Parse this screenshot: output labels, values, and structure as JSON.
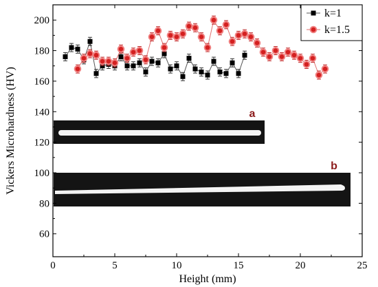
{
  "chart_data": {
    "type": "scatter",
    "xlabel": "Height (mm)",
    "ylabel": "Vickers Microhardness (HV)",
    "xlim": [
      0,
      25
    ],
    "ylim": [
      45,
      210
    ],
    "x_ticks": [
      0,
      5,
      10,
      15,
      20,
      25
    ],
    "y_ticks": [
      60,
      80,
      100,
      120,
      140,
      160,
      180,
      200
    ],
    "grid": false,
    "legend_position": "top-right",
    "series": [
      {
        "name": "k=1",
        "marker": "square",
        "color": "#000000",
        "line_color": "#555555",
        "points": [
          [
            1.0,
            176
          ],
          [
            1.5,
            182
          ],
          [
            2.0,
            181
          ],
          [
            2.5,
            174
          ],
          [
            3.0,
            186
          ],
          [
            3.5,
            165
          ],
          [
            4.0,
            170
          ],
          [
            4.5,
            171
          ],
          [
            5.0,
            170
          ],
          [
            5.5,
            176
          ],
          [
            6.0,
            170
          ],
          [
            6.5,
            170
          ],
          [
            7.0,
            172
          ],
          [
            7.5,
            166
          ],
          [
            8.0,
            173
          ],
          [
            8.5,
            172
          ],
          [
            9.0,
            178
          ],
          [
            9.5,
            168
          ],
          [
            10.0,
            170
          ],
          [
            10.5,
            163
          ],
          [
            11.0,
            175
          ],
          [
            11.5,
            168
          ],
          [
            12.0,
            166
          ],
          [
            12.5,
            164
          ],
          [
            13.0,
            173
          ],
          [
            13.5,
            166
          ],
          [
            14.0,
            165
          ],
          [
            14.5,
            172
          ],
          [
            15.0,
            165
          ],
          [
            15.5,
            177
          ]
        ]
      },
      {
        "name": "k=1.5",
        "marker": "circle",
        "color": "#d42020",
        "line_color": "#e07070",
        "points": [
          [
            2.0,
            168
          ],
          [
            2.5,
            175
          ],
          [
            3.0,
            178
          ],
          [
            3.5,
            177
          ],
          [
            4.0,
            173
          ],
          [
            4.5,
            173
          ],
          [
            5.0,
            172
          ],
          [
            5.5,
            181
          ],
          [
            6.0,
            175
          ],
          [
            6.5,
            179
          ],
          [
            7.0,
            180
          ],
          [
            7.5,
            174
          ],
          [
            8.0,
            189
          ],
          [
            8.5,
            193
          ],
          [
            9.0,
            182
          ],
          [
            9.5,
            190
          ],
          [
            10.0,
            189
          ],
          [
            10.5,
            191
          ],
          [
            11.0,
            196
          ],
          [
            11.5,
            195
          ],
          [
            12.0,
            189
          ],
          [
            12.5,
            182
          ],
          [
            13.0,
            200
          ],
          [
            13.5,
            193
          ],
          [
            14.0,
            197
          ],
          [
            14.5,
            186
          ],
          [
            15.0,
            190
          ],
          [
            15.5,
            191
          ],
          [
            16.0,
            189
          ],
          [
            16.5,
            185
          ],
          [
            17.0,
            179
          ],
          [
            17.5,
            176
          ],
          [
            18.0,
            180
          ],
          [
            18.5,
            176
          ],
          [
            19.0,
            179
          ],
          [
            19.5,
            177
          ],
          [
            20.0,
            175
          ],
          [
            20.5,
            171
          ],
          [
            21.0,
            175
          ],
          [
            21.5,
            164
          ],
          [
            22.0,
            168
          ]
        ]
      }
    ],
    "insets": [
      {
        "label": "a",
        "description_visible": "black background image with white horizontal bar"
      },
      {
        "label": "b",
        "description_visible": "black background image with white horizontal bar"
      }
    ]
  },
  "colors": {
    "axis": "#000000",
    "inset_background": "#141414",
    "inset_bar": "#f4f4f4",
    "inset_label": "#8b1a1a"
  }
}
